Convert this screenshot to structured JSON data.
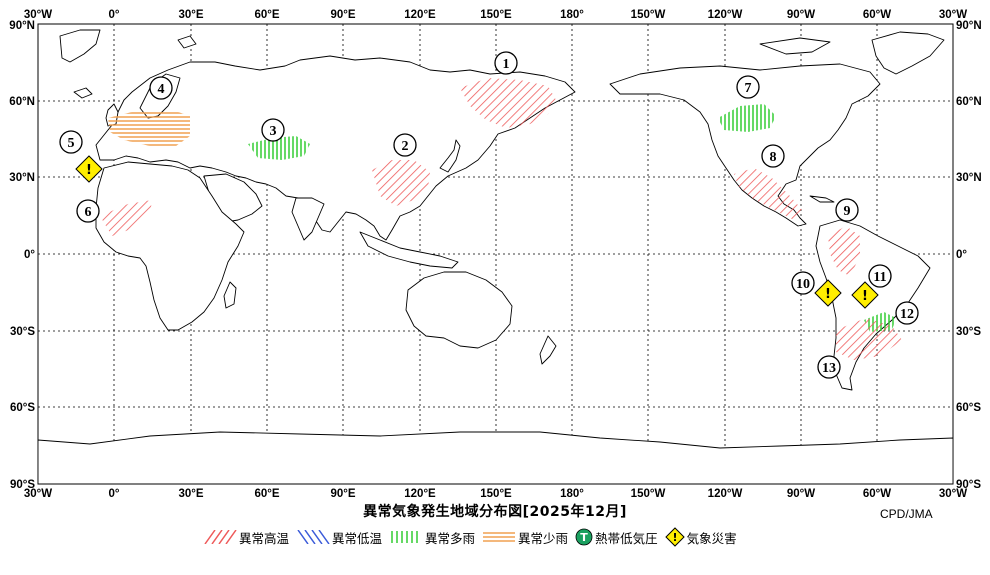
{
  "map": {
    "top_lon_labels": [
      "30°W",
      "0°",
      "30°E",
      "60°E",
      "90°E",
      "120°E",
      "150°E",
      "180°",
      "150°W",
      "120°W",
      "90°W",
      "60°W",
      "30°W"
    ],
    "bottom_lon_labels": [
      "30°W",
      "0°",
      "30°E",
      "60°E",
      "90°E",
      "120°E",
      "150°E",
      "180°",
      "150°W",
      "120°W",
      "90°W",
      "60°W",
      "30°W"
    ],
    "left_lat_labels": [
      "90°N",
      "60°N",
      "30°N",
      "0°",
      "30°S",
      "60°S",
      "90°S"
    ],
    "right_lat_labels": [
      "90°N",
      "60°N",
      "30°N",
      "0°",
      "30°S",
      "60°S",
      "90°S"
    ],
    "regions": [
      {
        "id": "1",
        "type": "abnormal-warm"
      },
      {
        "id": "2",
        "type": "abnormal-warm"
      },
      {
        "id": "3",
        "type": "abnormal-wet"
      },
      {
        "id": "4",
        "type": "abnormal-dry"
      },
      {
        "id": "5",
        "type": "weather-disaster"
      },
      {
        "id": "6",
        "type": "abnormal-warm"
      },
      {
        "id": "7",
        "type": "abnormal-wet"
      },
      {
        "id": "8",
        "type": "abnormal-warm"
      },
      {
        "id": "9",
        "type": "abnormal-warm"
      },
      {
        "id": "10",
        "type": "weather-disaster"
      },
      {
        "id": "11",
        "type": "weather-disaster"
      },
      {
        "id": "12",
        "type": "abnormal-wet"
      },
      {
        "id": "13",
        "type": "abnormal-warm"
      }
    ],
    "colors": {
      "warm": "#ee5a5a",
      "cold": "#3b5bd9",
      "wet": "#33cc33",
      "dry": "#f0a050",
      "disaster": "#ffee00",
      "cyclone": "#1aa060"
    }
  },
  "title": "異常気象発生地域分布図[2025年12月]",
  "credit": "CPD/JMA",
  "legend": {
    "warm": "異常高温",
    "cold": "異常低温",
    "wet": "異常多雨",
    "dry": "異常少雨",
    "cyclone": "熱帯低気圧",
    "cyclone_symbol": "T",
    "disaster": "気象災害",
    "disaster_symbol": "!"
  }
}
